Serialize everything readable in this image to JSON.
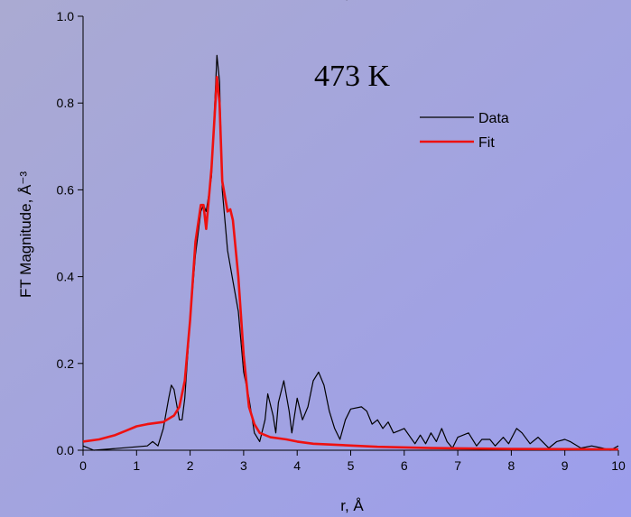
{
  "chart_data": {
    "type": "line",
    "annotation": "473 K",
    "xlabel": "r, Å",
    "ylabel": "FT Magnitude, Å⁻³",
    "xlim": [
      0,
      10
    ],
    "ylim": [
      0,
      1.0
    ],
    "xticks": [
      0,
      1,
      2,
      3,
      4,
      5,
      6,
      7,
      8,
      9,
      10
    ],
    "yticks": [
      {
        "value": 0,
        "label": "0.0"
      },
      0.2,
      0.4,
      0.6,
      0.8,
      {
        "value": 1,
        "label": "1.0"
      }
    ],
    "legend": "upper right",
    "series": [
      {
        "name": "Data",
        "color": "#000000",
        "x": [
          0,
          0.2,
          0.5,
          1.0,
          1.2,
          1.3,
          1.4,
          1.5,
          1.6,
          1.65,
          1.7,
          1.8,
          1.85,
          1.9,
          2.0,
          2.1,
          2.2,
          2.25,
          2.3,
          2.4,
          2.5,
          2.55,
          2.6,
          2.7,
          2.8,
          2.9,
          3.0,
          3.1,
          3.2,
          3.3,
          3.4,
          3.45,
          3.55,
          3.6,
          3.65,
          3.75,
          3.85,
          3.9,
          4.0,
          4.1,
          4.2,
          4.3,
          4.4,
          4.5,
          4.6,
          4.7,
          4.8,
          4.9,
          5.0,
          5.2,
          5.3,
          5.4,
          5.5,
          5.6,
          5.7,
          5.8,
          5.9,
          6.0,
          6.2,
          6.3,
          6.4,
          6.5,
          6.6,
          6.7,
          6.8,
          6.9,
          7.0,
          7.2,
          7.35,
          7.45,
          7.6,
          7.7,
          7.85,
          7.95,
          8.1,
          8.2,
          8.35,
          8.5,
          8.7,
          8.85,
          9.0,
          9.1,
          9.3,
          9.5,
          9.7,
          9.85,
          10
        ],
        "values": [
          0.01,
          0.0,
          0.003,
          0.008,
          0.01,
          0.02,
          0.01,
          0.05,
          0.12,
          0.15,
          0.14,
          0.07,
          0.07,
          0.12,
          0.3,
          0.45,
          0.55,
          0.565,
          0.55,
          0.63,
          0.91,
          0.85,
          0.6,
          0.46,
          0.39,
          0.32,
          0.18,
          0.12,
          0.04,
          0.02,
          0.07,
          0.13,
          0.08,
          0.04,
          0.11,
          0.16,
          0.09,
          0.04,
          0.12,
          0.07,
          0.1,
          0.16,
          0.18,
          0.15,
          0.09,
          0.05,
          0.025,
          0.07,
          0.095,
          0.1,
          0.09,
          0.06,
          0.07,
          0.05,
          0.065,
          0.04,
          0.045,
          0.05,
          0.015,
          0.035,
          0.015,
          0.04,
          0.02,
          0.05,
          0.02,
          0.005,
          0.03,
          0.04,
          0.01,
          0.025,
          0.025,
          0.01,
          0.03,
          0.015,
          0.05,
          0.04,
          0.015,
          0.03,
          0.005,
          0.02,
          0.025,
          0.02,
          0.005,
          0.01,
          0.005,
          0.0,
          0.01
        ]
      },
      {
        "name": "Fit",
        "color": "#ee1111",
        "x": [
          0,
          0.3,
          0.6,
          0.8,
          1.0,
          1.2,
          1.5,
          1.7,
          1.8,
          1.9,
          2.0,
          2.1,
          2.2,
          2.25,
          2.3,
          2.4,
          2.5,
          2.55,
          2.6,
          2.7,
          2.75,
          2.8,
          2.9,
          3.0,
          3.1,
          3.2,
          3.3,
          3.5,
          3.8,
          4.0,
          4.3,
          4.8,
          5.5,
          6.5,
          8,
          10
        ],
        "values": [
          0.02,
          0.025,
          0.035,
          0.045,
          0.055,
          0.06,
          0.065,
          0.08,
          0.1,
          0.16,
          0.3,
          0.48,
          0.565,
          0.565,
          0.51,
          0.65,
          0.86,
          0.8,
          0.62,
          0.55,
          0.555,
          0.53,
          0.4,
          0.22,
          0.1,
          0.06,
          0.04,
          0.03,
          0.025,
          0.02,
          0.015,
          0.012,
          0.008,
          0.005,
          0.003,
          0.002
        ]
      }
    ]
  }
}
